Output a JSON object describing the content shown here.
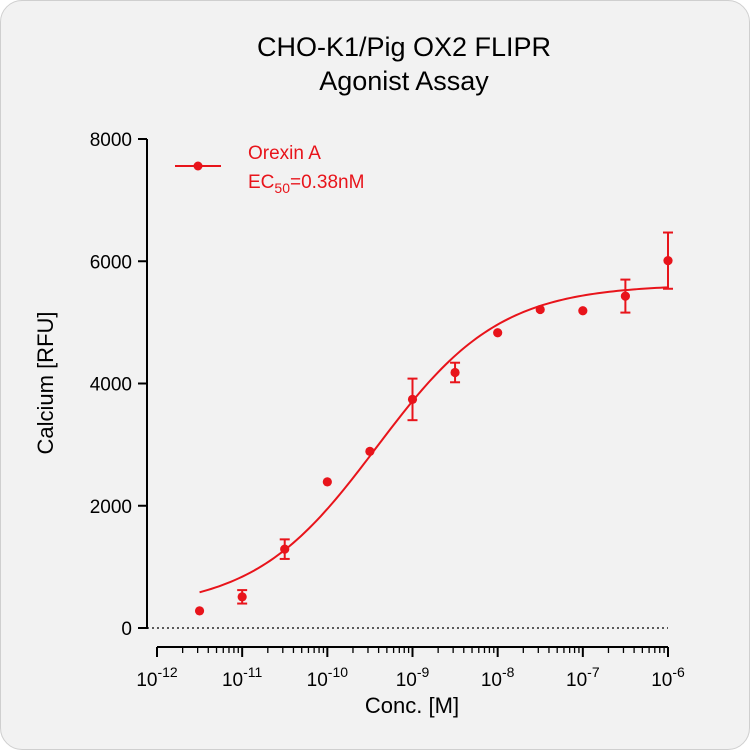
{
  "chart_data": {
    "type": "scatter",
    "title": [
      "CHO-K1/Pig OX2 FLIPR",
      "Agonist Assay"
    ],
    "xlabel": "Conc. [M]",
    "ylabel": "Calcium [RFU]",
    "x_scale": "log",
    "xlim": [
      1e-12,
      1e-06
    ],
    "ylim": [
      0,
      8000
    ],
    "y_ticks": [
      0,
      2000,
      4000,
      6000,
      8000
    ],
    "x_ticks": [
      {
        "value": 1e-12,
        "base": "10",
        "exp": "-12"
      },
      {
        "value": 1e-11,
        "base": "10",
        "exp": "-11"
      },
      {
        "value": 1e-10,
        "base": "10",
        "exp": "-10"
      },
      {
        "value": 1e-09,
        "base": "10",
        "exp": "-9"
      },
      {
        "value": 1e-08,
        "base": "10",
        "exp": "-8"
      },
      {
        "value": 1e-07,
        "base": "10",
        "exp": "-7"
      },
      {
        "value": 1e-06,
        "base": "10",
        "exp": "-6"
      }
    ],
    "grid": false,
    "zero_line": "dotted",
    "legend_position": "top-left",
    "series": [
      {
        "name": "Orexin A",
        "color": "#e8141b",
        "x": [
          3.16e-12,
          1e-11,
          3.16e-11,
          1e-10,
          3.16e-10,
          1e-09,
          3.16e-09,
          1e-08,
          3.16e-08,
          1e-07,
          3.16e-07,
          1e-06
        ],
        "y": [
          280,
          510,
          1290,
          2390,
          2890,
          3740,
          4180,
          4830,
          5210,
          5190,
          5430,
          6010
        ],
        "error": [
          0,
          110,
          160,
          0,
          0,
          340,
          160,
          0,
          0,
          0,
          270,
          460
        ],
        "fit": {
          "model": "4PL",
          "bottom": 300,
          "top": 5620,
          "ec50": 3.8e-10,
          "hill": 0.6
        }
      }
    ]
  },
  "legend": {
    "series_name": "Orexin A",
    "ec_prefix": "EC",
    "ec_sub": "50",
    "ec_value": "=0.38nM"
  }
}
